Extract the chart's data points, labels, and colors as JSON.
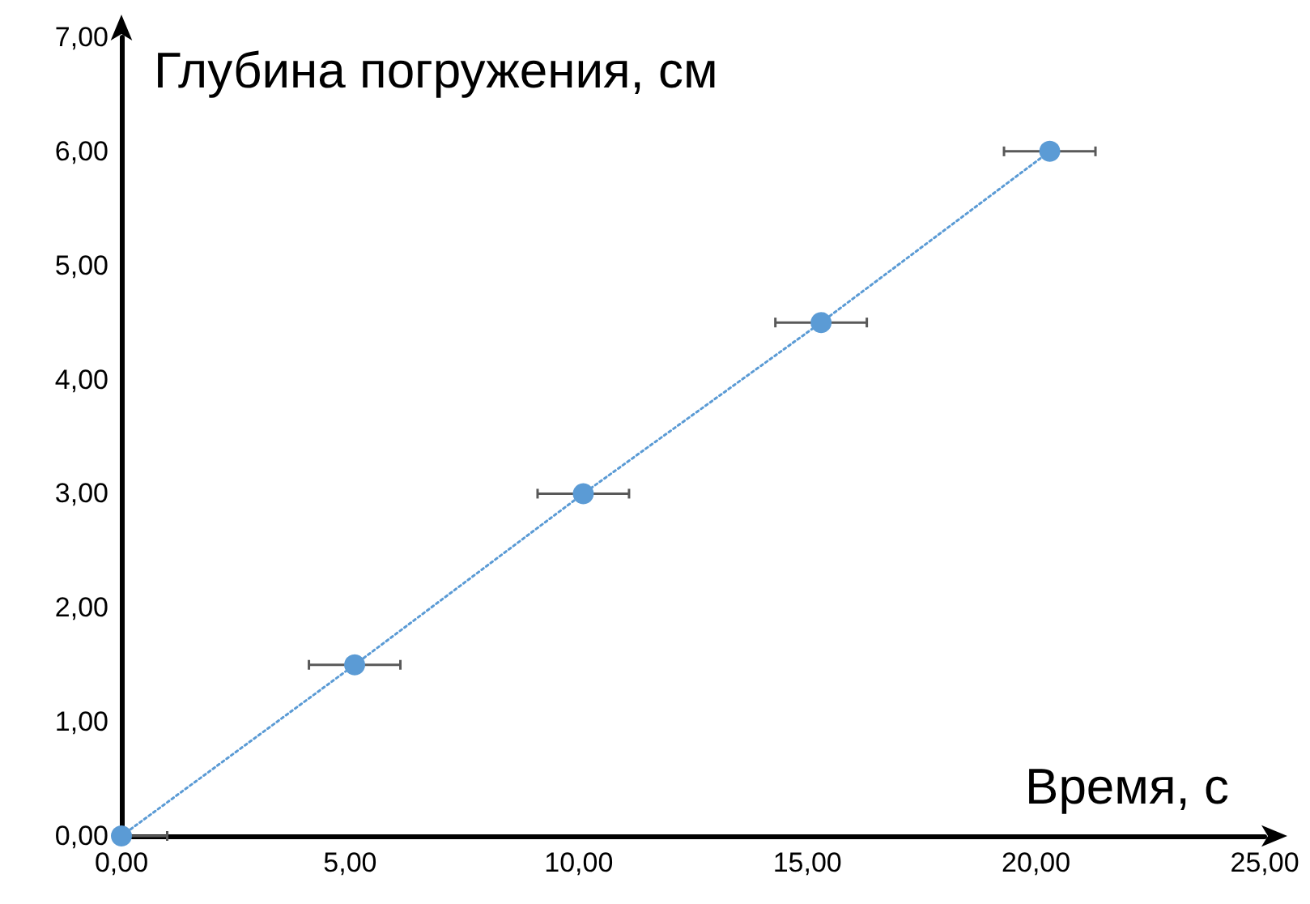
{
  "chart_data": {
    "type": "line",
    "xlabel": "Время, с",
    "ylabel": "Глубина погружения, см",
    "series": [
      {
        "color": "#5b9bd5",
        "x": [
          0,
          5.1,
          10.1,
          15.3,
          20.3
        ],
        "values": [
          0,
          1.5,
          3,
          4.5,
          6
        ],
        "xerrors": [
          [
            0,
            1
          ],
          1,
          1,
          1,
          1
        ]
      }
    ],
    "xlim": [
      0,
      25
    ],
    "ylim": [
      0,
      7
    ],
    "xticks": [
      {
        "value": 0,
        "label": "0,00"
      },
      {
        "value": 5,
        "label": "5,00"
      },
      {
        "value": 10,
        "label": "10,00"
      },
      {
        "value": 15,
        "label": "15,00"
      },
      {
        "value": 20,
        "label": "20,00"
      },
      {
        "value": 25,
        "label": "25,00"
      }
    ],
    "yticks": [
      {
        "value": 0,
        "label": "0,00"
      },
      {
        "value": 1,
        "label": "1,00"
      },
      {
        "value": 2,
        "label": "2,00"
      },
      {
        "value": 3,
        "label": "3,00"
      },
      {
        "value": 4,
        "label": "4,00"
      },
      {
        "value": 5,
        "label": "5,00"
      },
      {
        "value": 6,
        "label": "6,00"
      },
      {
        "value": 7,
        "label": "7,00"
      }
    ],
    "grid": false,
    "marker": "circle",
    "line_style": "dotted"
  }
}
